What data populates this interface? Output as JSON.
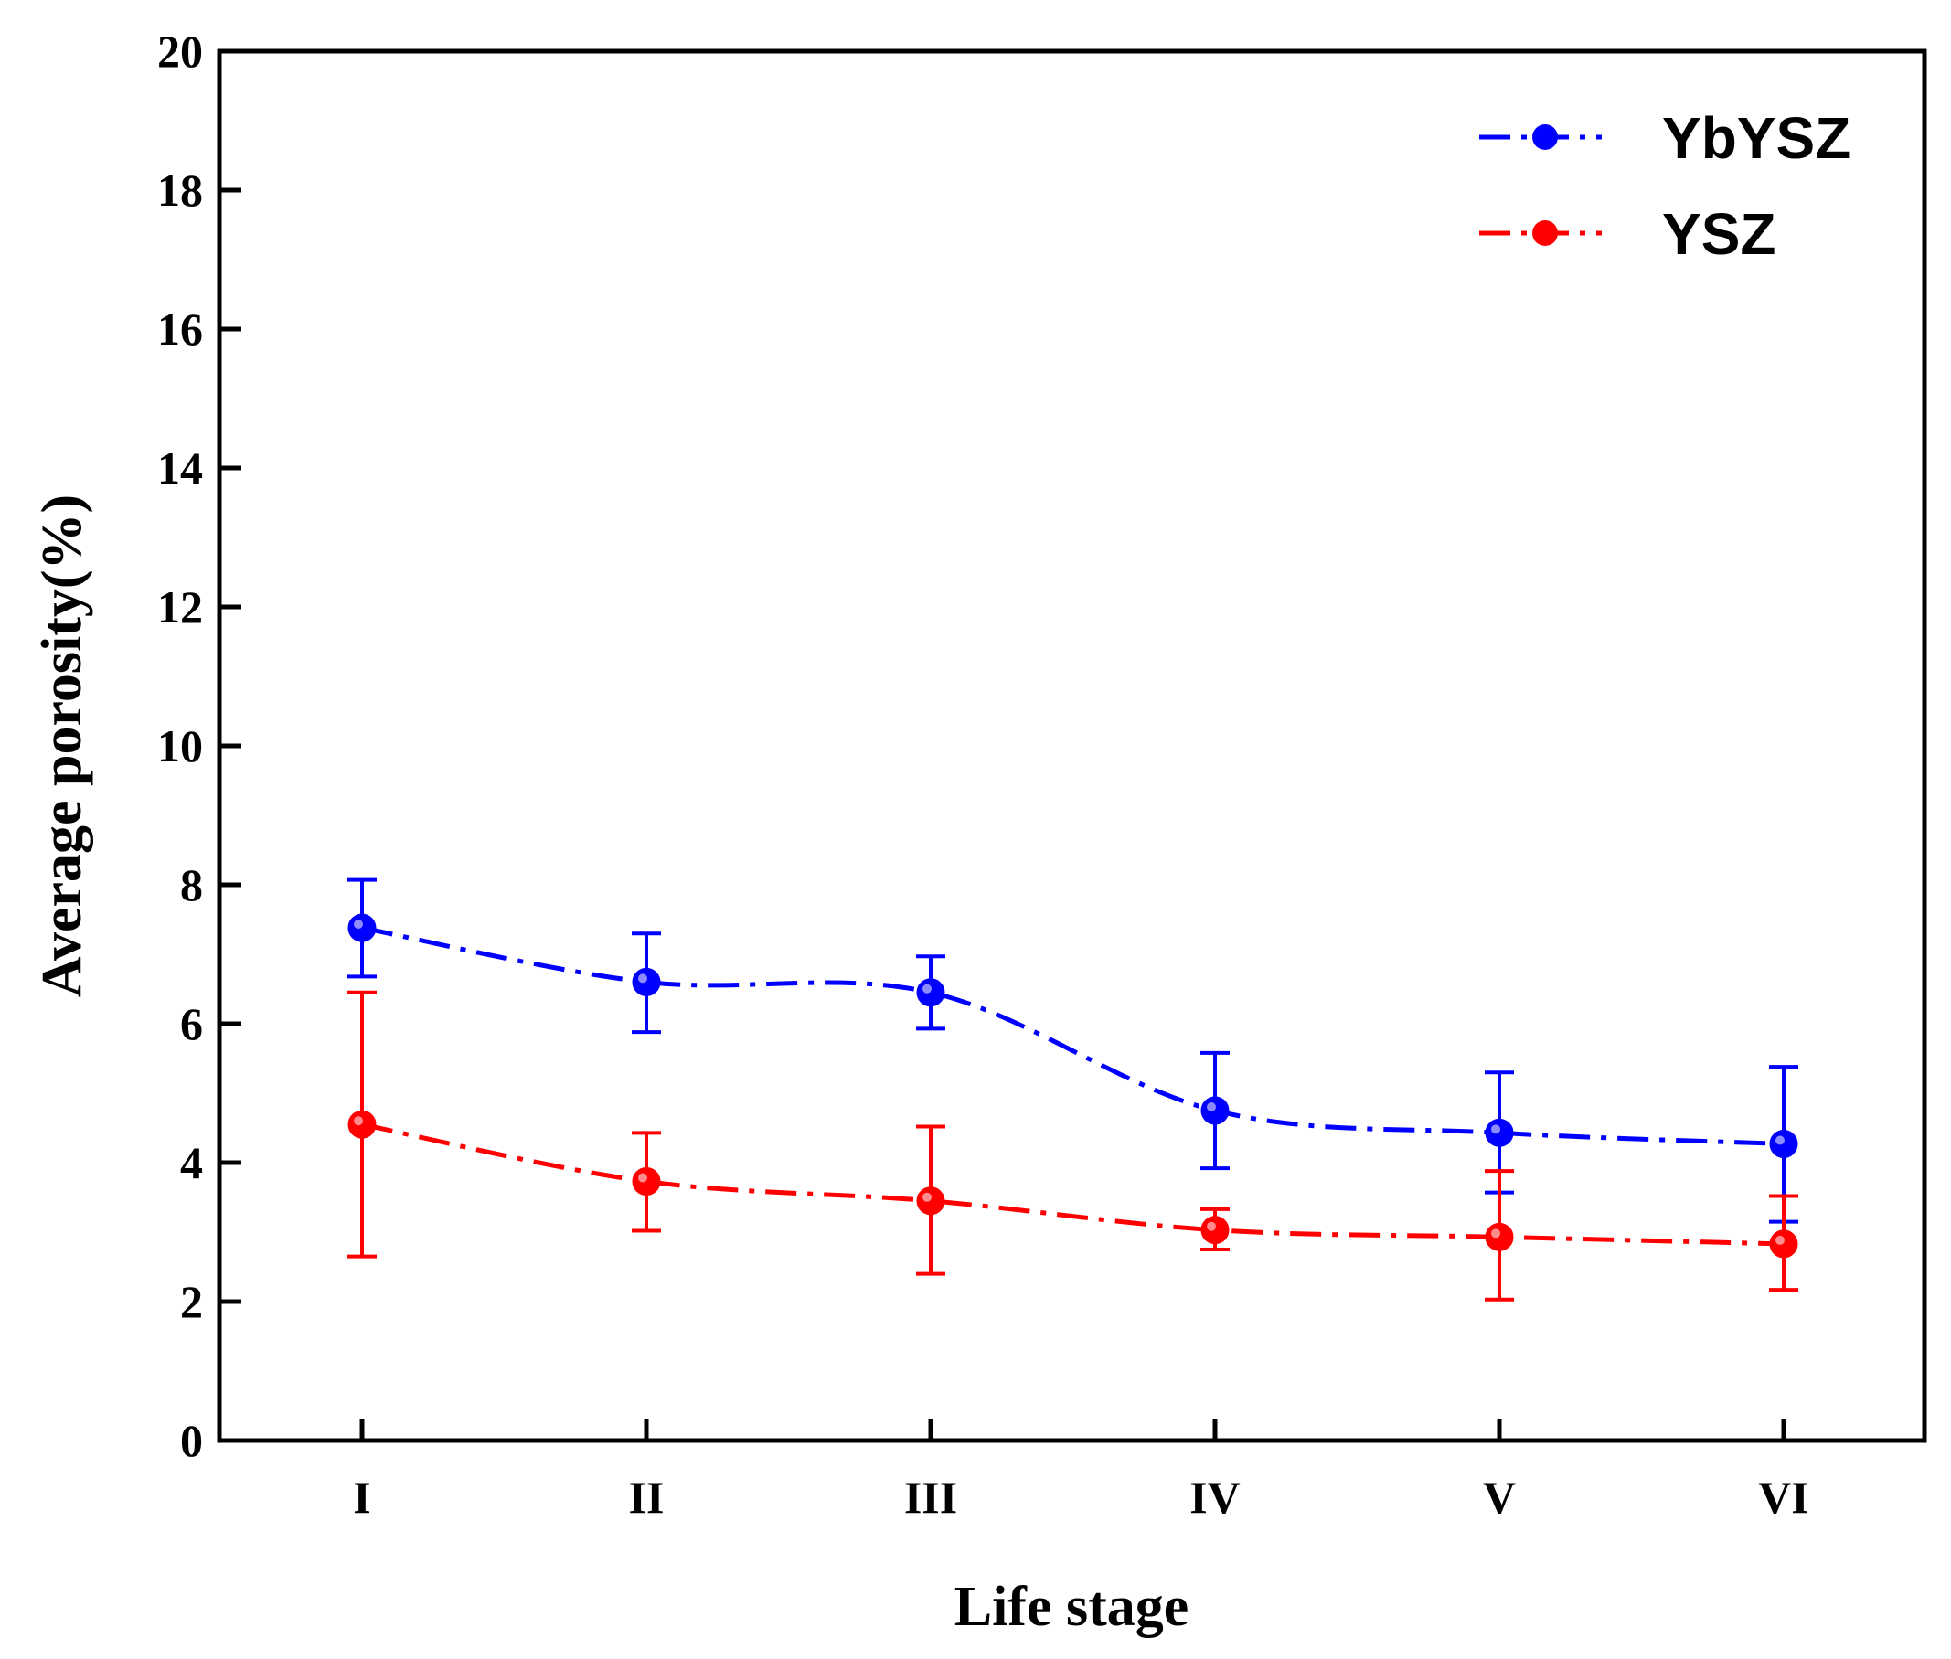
{
  "chart_data": {
    "type": "line",
    "title": "",
    "xlabel": "Life stage",
    "ylabel": "Average porosity(%)",
    "categories": [
      "I",
      "II",
      "III",
      "IV",
      "V",
      "VI"
    ],
    "ylim": [
      0,
      20
    ],
    "yticks": [
      0,
      2,
      4,
      6,
      8,
      10,
      12,
      14,
      16,
      18,
      20
    ],
    "ytick_labels": [
      "0",
      "2",
      "4",
      "6",
      "8",
      "10",
      "12",
      "14",
      "16",
      "18",
      "20"
    ],
    "grid": false,
    "legend_position": "top-right",
    "series": [
      {
        "name": "YbYSZ",
        "color": "#0000ff",
        "line_style": "dash-dot",
        "values": [
          7.38,
          6.6,
          6.45,
          4.75,
          4.43,
          4.27
        ],
        "error_low": [
          6.68,
          5.88,
          5.93,
          3.92,
          3.57,
          3.15
        ],
        "error_high": [
          8.07,
          7.3,
          6.97,
          5.58,
          5.3,
          5.38
        ]
      },
      {
        "name": "YSZ",
        "color": "#ff0000",
        "line_style": "dash-dot",
        "values": [
          4.55,
          3.73,
          3.45,
          3.03,
          2.93,
          2.83
        ],
        "error_low": [
          2.65,
          3.02,
          2.4,
          2.75,
          2.03,
          2.17
        ],
        "error_high": [
          6.45,
          4.43,
          4.52,
          3.33,
          3.88,
          3.52
        ]
      }
    ]
  }
}
